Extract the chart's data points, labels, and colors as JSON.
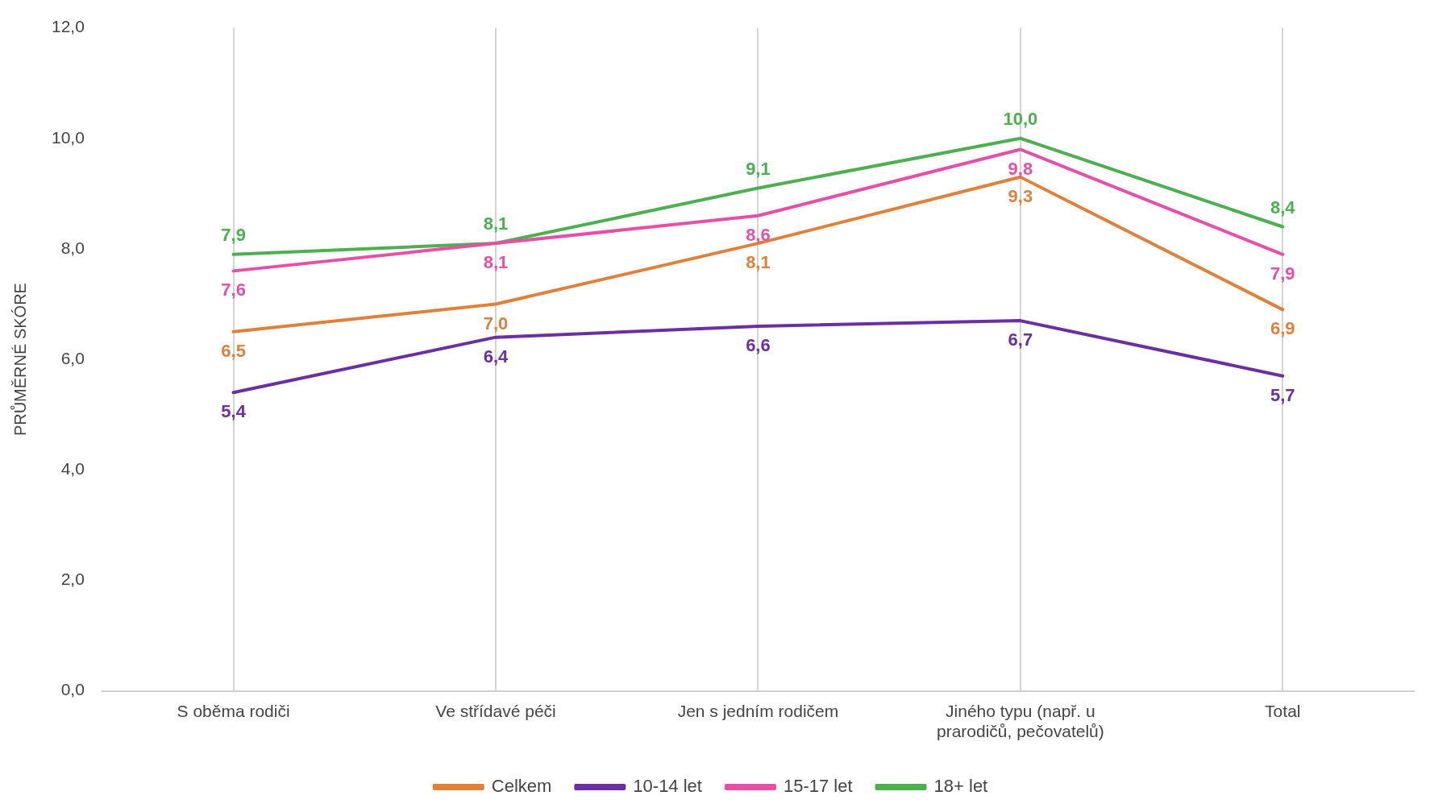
{
  "chart_data": {
    "type": "line",
    "ylabel": "PRŮMĚRNÉ SKÓRE",
    "categories": [
      "S oběma rodiči",
      "Ve střídavé péči",
      "Jen s jedním rodičem",
      "Jiného typu (např. u prarodičů, pečovatelů)",
      "Total"
    ],
    "series": [
      {
        "name": "Celkem",
        "color": "#e0813a",
        "values": [
          6.5,
          7.0,
          8.1,
          9.3,
          6.9
        ],
        "value_labels": [
          "6,5",
          "7,0",
          "8,1",
          "9,3",
          "6,9"
        ]
      },
      {
        "name": "10-14 let",
        "color": "#6a2fa0",
        "values": [
          5.4,
          6.4,
          6.6,
          6.7,
          5.7
        ],
        "value_labels": [
          "5,4",
          "6,4",
          "6,6",
          "6,7",
          "5,7"
        ]
      },
      {
        "name": "15-17 let",
        "color": "#e64fa6",
        "values": [
          7.6,
          8.1,
          8.6,
          9.8,
          7.9
        ],
        "value_labels": [
          "7,6",
          "8,1",
          "8,6",
          "9,8",
          "7,9"
        ]
      },
      {
        "name": "18+ let",
        "color": "#4caf50",
        "values": [
          7.9,
          8.1,
          9.1,
          10.0,
          8.4
        ],
        "value_labels": [
          "7,9",
          "8,1",
          "9,1",
          "10,0",
          "8,4"
        ]
      }
    ],
    "ylim": [
      0,
      12
    ],
    "yticks": [
      {
        "value": 0,
        "label": "0,0"
      },
      {
        "value": 2,
        "label": "2,0"
      },
      {
        "value": 4,
        "label": "4,0"
      },
      {
        "value": 6,
        "label": "6,0"
      },
      {
        "value": 8,
        "label": "8,0"
      },
      {
        "value": 10,
        "label": "10,0"
      },
      {
        "value": 12,
        "label": "12,0"
      }
    ],
    "grid": "x",
    "legend": "bottom",
    "marker": "none",
    "line_style": "solid"
  }
}
